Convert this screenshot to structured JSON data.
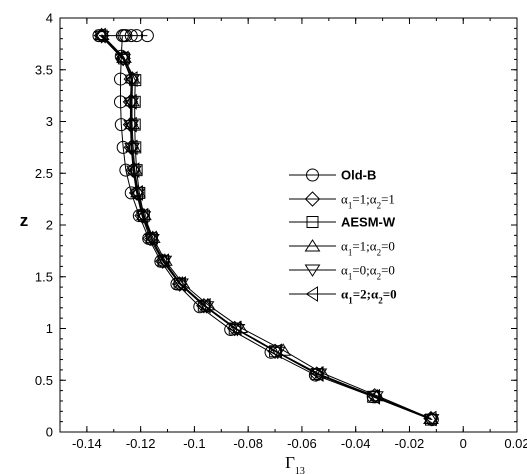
{
  "chart_data": {
    "type": "line",
    "xlabel": "Γ",
    "xlabel_sub": "13",
    "ylabel": "z",
    "xlim": [
      -0.15,
      0.02
    ],
    "ylim": [
      0,
      4
    ],
    "xticks": [
      -0.14,
      -0.12,
      -0.1,
      -0.08,
      -0.06,
      -0.04,
      -0.02,
      0,
      0.02
    ],
    "xtick_labels": [
      "-0.14",
      "-0.12",
      "-0.1",
      "-0.08",
      "-0.06",
      "-0.04",
      "-0.02",
      "0",
      "0.02"
    ],
    "yticks": [
      0,
      0.5,
      1,
      1.5,
      2,
      2.5,
      3,
      3.5,
      4
    ],
    "ytick_labels": [
      "0",
      "0.5",
      "1",
      "1.5",
      "2",
      "2.5",
      "3",
      "3.5",
      "4"
    ],
    "grid": false,
    "legend_position": "right",
    "series": [
      {
        "name": "Old-B",
        "name_style": "bold-sans",
        "marker": "circle",
        "x": [
          -0.0115,
          -0.0335,
          -0.055,
          -0.0715,
          -0.0865,
          -0.098,
          -0.1065,
          -0.1125,
          -0.117,
          -0.1205,
          -0.1235,
          -0.1255,
          -0.1265,
          -0.1272,
          -0.1275,
          -0.1275,
          -0.1272,
          -0.1268,
          -0.1262,
          -0.1255,
          -0.1235,
          -0.1215,
          -0.1175,
          -0.1355
        ],
        "y": [
          0.12,
          0.34,
          0.55,
          0.77,
          0.99,
          1.21,
          1.43,
          1.65,
          1.87,
          2.09,
          2.31,
          2.53,
          2.75,
          2.97,
          3.19,
          3.41,
          3.63,
          3.83,
          3.83,
          3.83,
          3.83,
          3.83,
          3.83,
          3.83
        ]
      },
      {
        "name": "α1=1;α2=1",
        "marker": "diamond",
        "x": [
          -0.012,
          -0.033,
          -0.0545,
          -0.07,
          -0.085,
          -0.0965,
          -0.1055,
          -0.1118,
          -0.1165,
          -0.1195,
          -0.1215,
          -0.1228,
          -0.1235,
          -0.1238,
          -0.1238,
          -0.1235,
          -0.1265,
          -0.1345
        ],
        "y": [
          0.13,
          0.35,
          0.56,
          0.78,
          1.0,
          1.22,
          1.43,
          1.65,
          1.87,
          2.09,
          2.31,
          2.53,
          2.75,
          2.97,
          3.19,
          3.41,
          3.61,
          3.83
        ]
      },
      {
        "name": "AESM-W",
        "name_style": "bold-sans",
        "marker": "square",
        "x": [
          -0.012,
          -0.0335,
          -0.0545,
          -0.07,
          -0.085,
          -0.0965,
          -0.1055,
          -0.1115,
          -0.1158,
          -0.1188,
          -0.1205,
          -0.1215,
          -0.122,
          -0.1222,
          -0.1222,
          -0.122,
          -0.1262,
          -0.1345
        ],
        "y": [
          0.12,
          0.34,
          0.56,
          0.78,
          1.0,
          1.22,
          1.43,
          1.65,
          1.87,
          2.09,
          2.31,
          2.53,
          2.75,
          2.97,
          3.19,
          3.4,
          3.61,
          3.83
        ]
      },
      {
        "name": "α1=1;α2=0",
        "marker": "triangle-up",
        "x": [
          -0.012,
          -0.032,
          -0.0525,
          -0.067,
          -0.083,
          -0.095,
          -0.1045,
          -0.111,
          -0.1155,
          -0.1188,
          -0.121,
          -0.1222,
          -0.1228,
          -0.1232,
          -0.1232,
          -0.123,
          -0.1262,
          -0.1345
        ],
        "y": [
          0.13,
          0.35,
          0.57,
          0.79,
          1.01,
          1.23,
          1.44,
          1.66,
          1.88,
          2.1,
          2.32,
          2.54,
          2.76,
          2.98,
          3.2,
          3.42,
          3.62,
          3.84
        ]
      },
      {
        "name": "α1=0;α2=0",
        "marker": "triangle-down",
        "x": [
          -0.0118,
          -0.0325,
          -0.0535,
          -0.069,
          -0.084,
          -0.0955,
          -0.105,
          -0.1112,
          -0.1158,
          -0.119,
          -0.1212,
          -0.1225,
          -0.1232,
          -0.1235,
          -0.1235,
          -0.1232,
          -0.1265,
          -0.1345
        ],
        "y": [
          0.12,
          0.34,
          0.56,
          0.77,
          0.99,
          1.21,
          1.43,
          1.65,
          1.86,
          2.08,
          2.3,
          2.52,
          2.74,
          2.96,
          3.18,
          3.4,
          3.6,
          3.82
        ]
      },
      {
        "name": "α1=2;α2=0",
        "name_style": "bold",
        "marker": "triangle-left",
        "x": [
          -0.012,
          -0.033,
          -0.054,
          -0.0695,
          -0.0845,
          -0.096,
          -0.1052,
          -0.1115,
          -0.116,
          -0.1192,
          -0.1212,
          -0.1225,
          -0.1232,
          -0.1235,
          -0.1235,
          -0.1232,
          -0.1265,
          -0.135
        ],
        "y": [
          0.13,
          0.34,
          0.56,
          0.78,
          1.0,
          1.22,
          1.43,
          1.65,
          1.87,
          2.09,
          2.31,
          2.53,
          2.75,
          2.97,
          3.19,
          3.41,
          3.61,
          3.83
        ]
      }
    ]
  },
  "legend": {
    "items": [
      {
        "text": "Old-B",
        "style": "bold-sans"
      },
      {
        "parts": [
          "α",
          "1",
          "=1;α",
          "2",
          "=1"
        ],
        "style": "serif"
      },
      {
        "text": "AESM-W",
        "style": "bold-sans"
      },
      {
        "parts": [
          "α",
          "1",
          "=1;α",
          "2",
          "=0"
        ],
        "style": "serif"
      },
      {
        "parts": [
          "α",
          "1",
          "=0;α",
          "2",
          "=0"
        ],
        "style": "serif"
      },
      {
        "parts": [
          "α",
          "1",
          "=2;α",
          "2",
          "=0"
        ],
        "style": "bold-serif"
      }
    ]
  }
}
